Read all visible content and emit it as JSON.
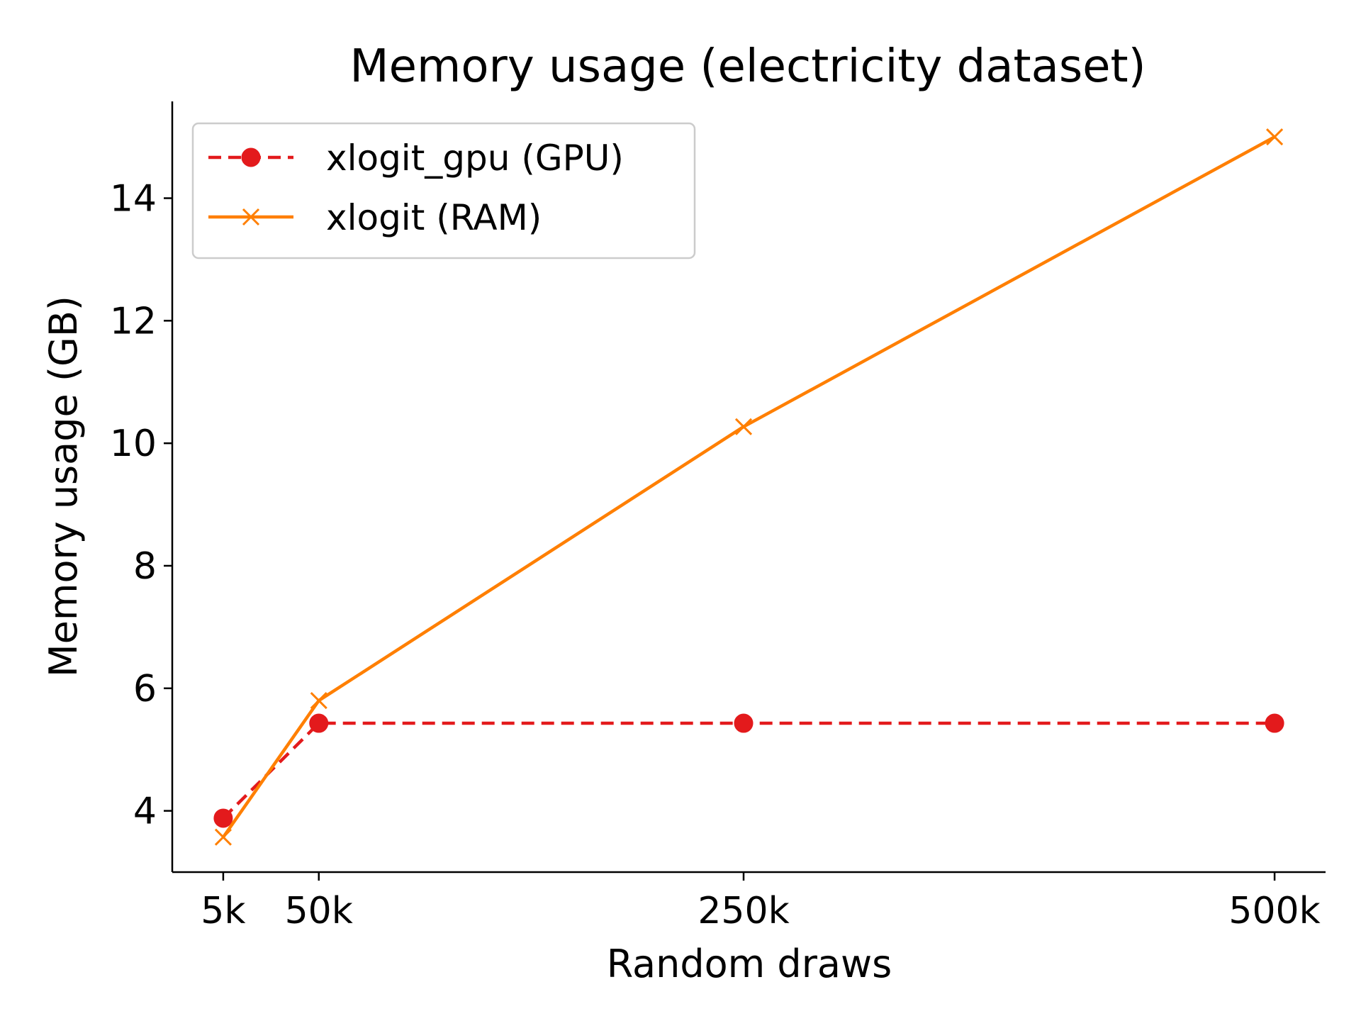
{
  "chart_data": {
    "type": "line",
    "title": "Memory usage (electricity dataset)",
    "xlabel": "Random draws",
    "ylabel": "Memory usage (GB)",
    "x": [
      5000,
      50000,
      250000,
      500000
    ],
    "x_tick_labels": [
      "5k",
      "50k",
      "250k",
      "500k"
    ],
    "xlim": [
      -19000,
      524000
    ],
    "ylim": [
      3.0,
      15.58
    ],
    "y_ticks": [
      4,
      6,
      8,
      10,
      12,
      14
    ],
    "y_tick_labels": [
      "4",
      "6",
      "8",
      "10",
      "12",
      "14"
    ],
    "grid": false,
    "legend_position": "upper-left",
    "series": [
      {
        "name": "xlogit_gpu (GPU)",
        "values": [
          3.88,
          5.43,
          5.43,
          5.43
        ],
        "color": "#e31a1c",
        "line_style": "dashed",
        "marker": "circle"
      },
      {
        "name": "xlogit (RAM)",
        "values": [
          3.57,
          5.8,
          10.27,
          15.0
        ],
        "color": "#ff7f00",
        "line_style": "solid",
        "marker": "x"
      }
    ]
  }
}
